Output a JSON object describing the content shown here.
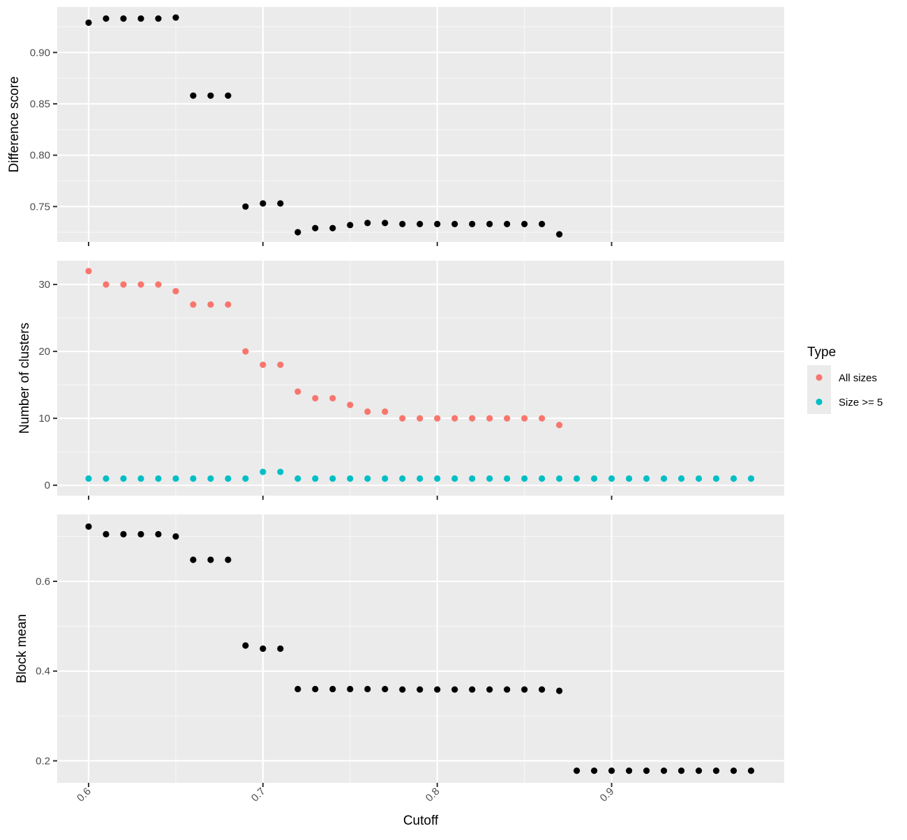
{
  "chart_data": {
    "type": "scatter",
    "x_label": "Cutoff",
    "x_ticks": [
      0.6,
      0.7,
      0.8,
      0.9
    ],
    "x_tick_labels": [
      "0.6",
      "0.7",
      "0.8",
      "0.9"
    ],
    "xlim": [
      0.582,
      0.999
    ],
    "grid": true,
    "legend": {
      "title": "Type",
      "placement": "right",
      "entries": [
        {
          "label": "All sizes",
          "color": "#F8766D"
        },
        {
          "label": "Size >= 5",
          "color": "#00BFC4"
        }
      ]
    },
    "panels": [
      {
        "ylabel": "Difference score",
        "ylim": [
          0.7156,
          0.9443
        ],
        "y_ticks": [
          0.75,
          0.8,
          0.85,
          0.9
        ],
        "y_tick_labels": [
          "0.75",
          "0.80",
          "0.85",
          "0.90"
        ],
        "series": [
          {
            "color": "#000000",
            "x": [
              0.6,
              0.61,
              0.62,
              0.63,
              0.64,
              0.65,
              0.66,
              0.67,
              0.68,
              0.69,
              0.7,
              0.71,
              0.72,
              0.73,
              0.74,
              0.75,
              0.76,
              0.77,
              0.78,
              0.79,
              0.8,
              0.81,
              0.82,
              0.83,
              0.84,
              0.85,
              0.86,
              0.87
            ],
            "y": [
              0.929,
              0.933,
              0.933,
              0.933,
              0.933,
              0.934,
              0.858,
              0.858,
              0.858,
              0.75,
              0.753,
              0.753,
              0.725,
              0.729,
              0.729,
              0.732,
              0.734,
              0.734,
              0.733,
              0.733,
              0.733,
              0.733,
              0.733,
              0.733,
              0.733,
              0.733,
              0.733,
              0.723
            ]
          }
        ]
      },
      {
        "ylabel": "Number of clusters",
        "ylim": [
          -1.55,
          33.55
        ],
        "y_ticks": [
          0,
          10,
          20,
          30
        ],
        "y_tick_labels": [
          "0",
          "10",
          "20",
          "30"
        ],
        "series": [
          {
            "name": "All sizes",
            "color": "#F8766D",
            "x": [
              0.6,
              0.61,
              0.62,
              0.63,
              0.64,
              0.65,
              0.66,
              0.67,
              0.68,
              0.69,
              0.7,
              0.71,
              0.72,
              0.73,
              0.74,
              0.75,
              0.76,
              0.77,
              0.78,
              0.79,
              0.8,
              0.81,
              0.82,
              0.83,
              0.84,
              0.85,
              0.86,
              0.87
            ],
            "y": [
              32,
              30,
              30,
              30,
              30,
              29,
              27,
              27,
              27,
              20,
              18,
              18,
              14,
              13,
              13,
              12,
              11,
              11,
              10,
              10,
              10,
              10,
              10,
              10,
              10,
              10,
              10,
              9
            ]
          },
          {
            "name": "Size >= 5",
            "color": "#00BFC4",
            "x": [
              0.6,
              0.61,
              0.62,
              0.63,
              0.64,
              0.65,
              0.66,
              0.67,
              0.68,
              0.69,
              0.7,
              0.71,
              0.72,
              0.73,
              0.74,
              0.75,
              0.76,
              0.77,
              0.78,
              0.79,
              0.8,
              0.81,
              0.82,
              0.83,
              0.84,
              0.85,
              0.86,
              0.87,
              0.88,
              0.89,
              0.9,
              0.91,
              0.92,
              0.93,
              0.94,
              0.95,
              0.96,
              0.97,
              0.98
            ],
            "y": [
              1,
              1,
              1,
              1,
              1,
              1,
              1,
              1,
              1,
              1,
              2,
              2,
              1,
              1,
              1,
              1,
              1,
              1,
              1,
              1,
              1,
              1,
              1,
              1,
              1,
              1,
              1,
              1,
              1,
              1,
              1,
              1,
              1,
              1,
              1,
              1,
              1,
              1,
              1
            ]
          }
        ]
      },
      {
        "ylabel": "Block mean",
        "ylim": [
          0.151,
          0.749
        ],
        "y_ticks": [
          0.2,
          0.4,
          0.6
        ],
        "y_tick_labels": [
          "0.2",
          "0.4",
          "0.6"
        ],
        "series": [
          {
            "color": "#000000",
            "x": [
              0.6,
              0.61,
              0.62,
              0.63,
              0.64,
              0.65,
              0.66,
              0.67,
              0.68,
              0.69,
              0.7,
              0.71,
              0.72,
              0.73,
              0.74,
              0.75,
              0.76,
              0.77,
              0.78,
              0.79,
              0.8,
              0.81,
              0.82,
              0.83,
              0.84,
              0.85,
              0.86,
              0.87,
              0.88,
              0.89,
              0.9,
              0.91,
              0.92,
              0.93,
              0.94,
              0.95,
              0.96,
              0.97,
              0.98
            ],
            "y": [
              0.722,
              0.705,
              0.705,
              0.705,
              0.705,
              0.7,
              0.648,
              0.648,
              0.648,
              0.457,
              0.45,
              0.45,
              0.36,
              0.36,
              0.36,
              0.36,
              0.36,
              0.36,
              0.359,
              0.359,
              0.359,
              0.359,
              0.359,
              0.359,
              0.359,
              0.359,
              0.359,
              0.356,
              0.178,
              0.178,
              0.178,
              0.178,
              0.178,
              0.178,
              0.178,
              0.178,
              0.178,
              0.178,
              0.178
            ]
          }
        ]
      }
    ]
  }
}
